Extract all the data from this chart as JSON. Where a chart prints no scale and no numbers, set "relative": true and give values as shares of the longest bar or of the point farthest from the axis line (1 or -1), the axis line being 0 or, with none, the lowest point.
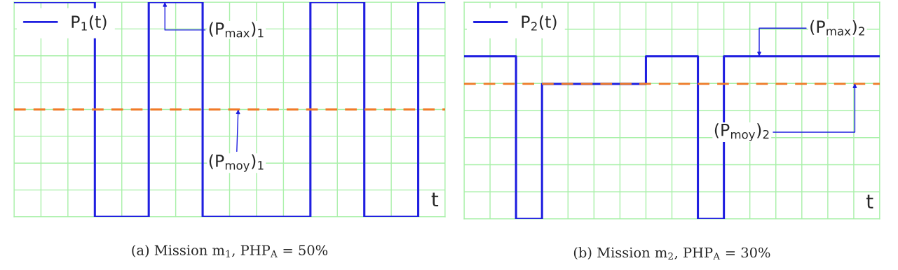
{
  "chart_data": [
    {
      "type": "step",
      "relative": true,
      "grid": true,
      "legend": "top left",
      "xlabel": "t",
      "title": "(a) Mission m$_{1}$, PHP$_{A}$ = 50%",
      "categories": [
        null,
        null,
        null,
        null,
        null,
        null,
        null,
        null,
        null,
        null,
        null,
        null,
        null,
        null,
        null,
        null,
        null
      ],
      "series": [
        {
          "name": "P$_{1}$(t)",
          "color": "#1f1fe0",
          "values": [
            1,
            1,
            1,
            0,
            0,
            1,
            1,
            0,
            0,
            0,
            0,
            1,
            1,
            0,
            0,
            1,
            1
          ]
        }
      ],
      "ref_lines": [
        {
          "axis": "y",
          "value": 0.5,
          "color": "#f07a28",
          "line_style": "dashed"
        }
      ],
      "annotations": [
        "(P$_{max}$)$_{1}$",
        "(P$_{moy}$)$_{1}$"
      ]
    },
    {
      "type": "step",
      "relative": true,
      "grid": true,
      "legend": "top left",
      "xlabel": "t",
      "title": "(b) Mission m$_{2}$, PHP$_{A}$ = 30%",
      "categories": [
        null,
        null,
        null,
        null,
        null,
        null,
        null,
        null,
        null,
        null,
        null,
        null,
        null,
        null,
        null,
        null,
        null
      ],
      "series": [
        {
          "name": "P$_{2}$(t)",
          "color": "#1f1fe0",
          "values": [
            1,
            1,
            0,
            0.83,
            0.83,
            0.83,
            0.83,
            1,
            1,
            0,
            1,
            1,
            1,
            1,
            1,
            1,
            1
          ]
        }
      ],
      "ref_lines": [
        {
          "axis": "y",
          "value": 0.83,
          "color": "#f07a28",
          "line_style": "dashed"
        }
      ],
      "annotations": [
        "(P$_{max}$)$_{2}$",
        "(P$_{moy}$)$_{2}$"
      ]
    }
  ]
}
